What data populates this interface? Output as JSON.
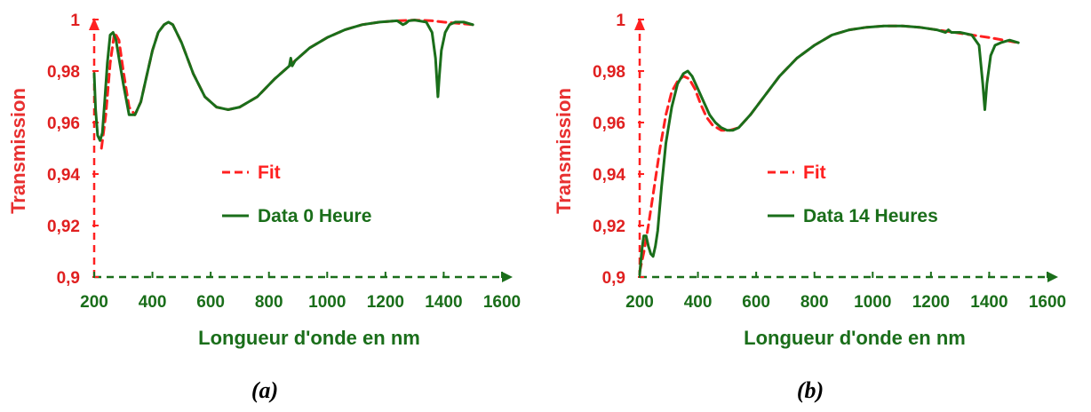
{
  "colors": {
    "fit": "#ff2020",
    "data": "#1a6e1a",
    "y_axis": "#ff2020",
    "x_axis": "#1a6e1a",
    "ytick_text": "#e02020",
    "ytitle_text": "#e83030",
    "xtick_text": "#1a6e1a",
    "label_text": "#000000"
  },
  "chart_data": [
    {
      "type": "line",
      "panel_label": "(a)",
      "xlabel": "Longueur d'onde en nm",
      "ylabel": "Transmission",
      "xlim": [
        200,
        1600
      ],
      "ylim": [
        0.9,
        1.0
      ],
      "x_ticks": [
        200,
        400,
        600,
        800,
        1000,
        1200,
        1400,
        1600
      ],
      "x_tick_labels": [
        "200",
        "400",
        "600",
        "800",
        "1000",
        "1200",
        "1400",
        "1600"
      ],
      "y_ticks": [
        0.9,
        0.92,
        0.94,
        0.96,
        0.98,
        1.0
      ],
      "y_tick_labels": [
        "0,9",
        "0,92",
        "0,94",
        "0,96",
        "0,98",
        "1"
      ],
      "legend_position": "center",
      "series": [
        {
          "name": "Fit",
          "style": "dashed",
          "x": [
            225,
            240,
            255,
            270,
            285,
            300,
            320,
            340,
            360,
            380,
            400,
            420,
            440,
            455,
            470,
            500,
            540,
            580,
            620,
            660,
            700,
            760,
            820,
            880,
            940,
            1000,
            1060,
            1120,
            1180,
            1240,
            1300,
            1360,
            1400,
            1450,
            1500
          ],
          "y": [
            0.95,
            0.963,
            0.983,
            0.995,
            0.992,
            0.98,
            0.966,
            0.963,
            0.968,
            0.978,
            0.988,
            0.995,
            0.998,
            0.999,
            0.998,
            0.991,
            0.979,
            0.97,
            0.966,
            0.965,
            0.966,
            0.97,
            0.977,
            0.983,
            0.989,
            0.993,
            0.996,
            0.998,
            0.999,
            0.9995,
            0.9998,
            0.9995,
            0.999,
            0.9985,
            0.998
          ]
        },
        {
          "name": "Data 0 Heure",
          "style": "solid",
          "x": [
            200,
            205,
            212,
            220,
            228,
            236,
            245,
            255,
            265,
            275,
            285,
            300,
            320,
            340,
            360,
            380,
            400,
            420,
            440,
            455,
            470,
            500,
            540,
            580,
            620,
            660,
            700,
            760,
            820,
            870,
            875,
            880,
            890,
            940,
            1000,
            1060,
            1120,
            1180,
            1240,
            1260,
            1270,
            1280,
            1300,
            1340,
            1360,
            1372,
            1380,
            1385,
            1392,
            1405,
            1420,
            1440,
            1470,
            1500
          ],
          "y": [
            0.979,
            0.965,
            0.955,
            0.953,
            0.956,
            0.968,
            0.983,
            0.994,
            0.995,
            0.992,
            0.985,
            0.975,
            0.963,
            0.963,
            0.968,
            0.978,
            0.988,
            0.995,
            0.998,
            0.999,
            0.998,
            0.991,
            0.979,
            0.97,
            0.966,
            0.965,
            0.966,
            0.97,
            0.977,
            0.982,
            0.985,
            0.982,
            0.984,
            0.989,
            0.993,
            0.996,
            0.998,
            0.999,
            0.9995,
            0.998,
            0.9985,
            0.9995,
            0.9998,
            0.999,
            0.995,
            0.985,
            0.97,
            0.978,
            0.988,
            0.995,
            0.998,
            0.999,
            0.999,
            0.998
          ]
        }
      ]
    },
    {
      "type": "line",
      "panel_label": "(b)",
      "xlabel": "Longueur d'onde en nm",
      "ylabel": "Transmission",
      "xlim": [
        200,
        1600
      ],
      "ylim": [
        0.9,
        1.0
      ],
      "x_ticks": [
        200,
        400,
        600,
        800,
        1000,
        1200,
        1400,
        1600
      ],
      "x_tick_labels": [
        "200",
        "400",
        "600",
        "800",
        "1000",
        "1200",
        "1400",
        "1600"
      ],
      "y_ticks": [
        0.9,
        0.92,
        0.94,
        0.96,
        0.98,
        1.0
      ],
      "y_tick_labels": [
        "0,9",
        "0,92",
        "0,94",
        "0,96",
        "0,98",
        "1"
      ],
      "legend_position": "center",
      "series": [
        {
          "name": "Fit",
          "style": "dashed",
          "x": [
            200,
            215,
            230,
            250,
            270,
            290,
            310,
            330,
            350,
            370,
            390,
            410,
            430,
            450,
            480,
            510,
            540,
            580,
            620,
            680,
            740,
            800,
            860,
            920,
            980,
            1040,
            1100,
            1160,
            1220,
            1280,
            1340,
            1400,
            1450,
            1500
          ],
          "y": [
            0.902,
            0.91,
            0.92,
            0.935,
            0.95,
            0.963,
            0.972,
            0.976,
            0.978,
            0.977,
            0.973,
            0.967,
            0.962,
            0.959,
            0.957,
            0.957,
            0.958,
            0.963,
            0.969,
            0.978,
            0.985,
            0.99,
            0.994,
            0.996,
            0.997,
            0.9975,
            0.9975,
            0.997,
            0.996,
            0.995,
            0.994,
            0.993,
            0.992,
            0.991
          ]
        },
        {
          "name": "Data 14 Heures",
          "style": "solid",
          "x": [
            200,
            207,
            214,
            222,
            230,
            238,
            246,
            254,
            262,
            275,
            290,
            310,
            330,
            350,
            365,
            380,
            400,
            420,
            440,
            460,
            480,
            500,
            520,
            540,
            580,
            620,
            680,
            740,
            800,
            860,
            920,
            980,
            1040,
            1100,
            1160,
            1220,
            1250,
            1260,
            1270,
            1300,
            1340,
            1365,
            1378,
            1385,
            1392,
            1405,
            1420,
            1440,
            1470,
            1500
          ],
          "y": [
            0.901,
            0.91,
            0.916,
            0.916,
            0.912,
            0.909,
            0.908,
            0.912,
            0.918,
            0.935,
            0.952,
            0.966,
            0.975,
            0.979,
            0.98,
            0.978,
            0.973,
            0.968,
            0.963,
            0.96,
            0.958,
            0.957,
            0.957,
            0.958,
            0.963,
            0.969,
            0.978,
            0.985,
            0.99,
            0.994,
            0.996,
            0.997,
            0.9975,
            0.9975,
            0.997,
            0.996,
            0.995,
            0.996,
            0.995,
            0.995,
            0.994,
            0.99,
            0.975,
            0.965,
            0.975,
            0.986,
            0.99,
            0.991,
            0.992,
            0.991
          ]
        }
      ]
    }
  ]
}
